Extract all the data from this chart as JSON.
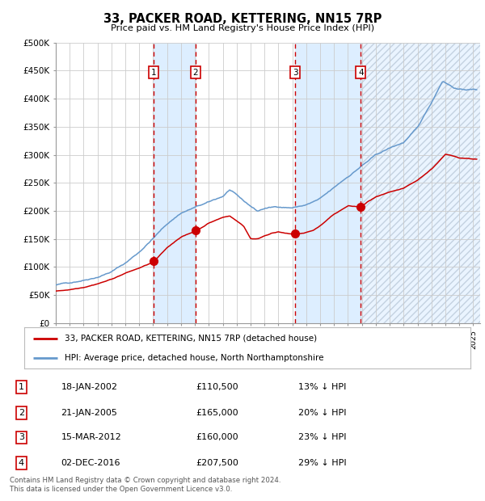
{
  "title": "33, PACKER ROAD, KETTERING, NN15 7RP",
  "subtitle": "Price paid vs. HM Land Registry's House Price Index (HPI)",
  "legend_label_red": "33, PACKER ROAD, KETTERING, NN15 7RP (detached house)",
  "legend_label_blue": "HPI: Average price, detached house, North Northamptonshire",
  "footer_line1": "Contains HM Land Registry data © Crown copyright and database right 2024.",
  "footer_line2": "This data is licensed under the Open Government Licence v3.0.",
  "transactions": [
    {
      "num": 1,
      "date": "18-JAN-2002",
      "price": 110500,
      "pct": "13%",
      "x_year": 2002.05
    },
    {
      "num": 2,
      "date": "21-JAN-2005",
      "price": 165000,
      "pct": "20%",
      "x_year": 2005.05
    },
    {
      "num": 3,
      "date": "15-MAR-2012",
      "price": 160000,
      "pct": "23%",
      "x_year": 2012.2
    },
    {
      "num": 4,
      "date": "02-DEC-2016",
      "price": 207500,
      "pct": "29%",
      "x_year": 2016.92
    }
  ],
  "shade_color": "#ddeeff",
  "hpi_color": "#6699cc",
  "price_color": "#cc0000",
  "background_color": "#ffffff",
  "grid_color": "#cccccc",
  "ylim": [
    0,
    500000
  ],
  "xlim_start": 1995.0,
  "xlim_end": 2025.5,
  "yticks": [
    0,
    50000,
    100000,
    150000,
    200000,
    250000,
    300000,
    350000,
    400000,
    450000,
    500000
  ]
}
